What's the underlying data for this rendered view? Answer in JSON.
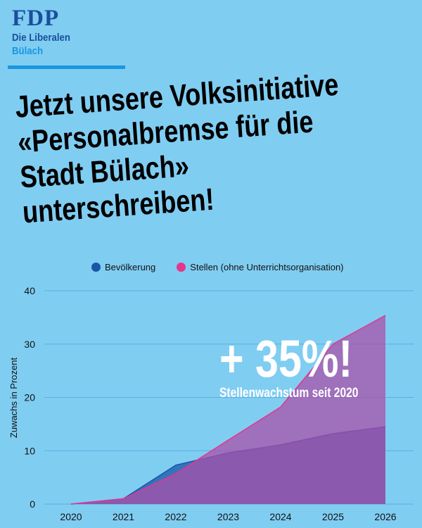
{
  "logo": {
    "name": "FDP",
    "subtitle": "Die Liberalen",
    "city": "Bülach"
  },
  "headline": [
    "Jetzt unsere Volksinitiative",
    "«Personalbremse für die",
    "Stadt Bülach»",
    "unterschreiben!"
  ],
  "callout": {
    "value": "+ 35%!",
    "text": "Stellenwachstum seit 2020"
  },
  "chart_data": {
    "type": "area",
    "title": "",
    "xlabel": "",
    "ylabel": "Zuwachs in Prozent",
    "x": [
      "2020",
      "2021",
      "2022",
      "2023",
      "2024",
      "2025",
      "2026"
    ],
    "ylim": [
      0,
      40
    ],
    "yticks": [
      "0",
      "10",
      "20",
      "30",
      "40"
    ],
    "grid": true,
    "legend_position": "top",
    "series": [
      {
        "name": "Bevölkerung",
        "color": "#1a56a8",
        "values": [
          0,
          1,
          7.3,
          9.6,
          11.1,
          13.2,
          14.5
        ]
      },
      {
        "name": "Stellen (ohne Unterrichtsorganisation)",
        "color": "#e5358f",
        "values": [
          0,
          1,
          5.7,
          12,
          18.2,
          30,
          35.4
        ]
      }
    ]
  }
}
